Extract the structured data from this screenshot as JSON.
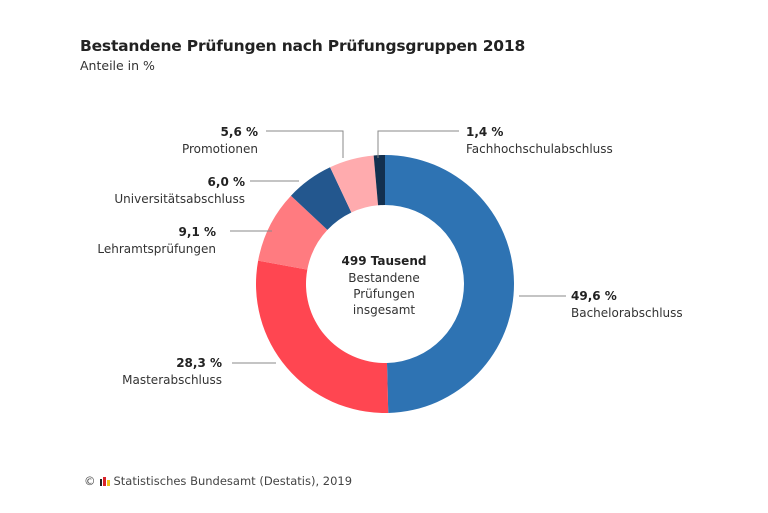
{
  "header": {
    "title": "Bestandene Prüfungen nach Prüfungsgruppen 2018",
    "subtitle": "Anteile in %"
  },
  "chart_data": {
    "type": "pie",
    "variant": "donut",
    "title": "Bestandene Prüfungen nach Prüfungsgruppen 2018",
    "subtitle": "Anteile in %",
    "unit": "%",
    "center_label": {
      "value": "499 Tausend",
      "lines": [
        "Bestandene",
        "Prüfungen",
        "insgesamt"
      ]
    },
    "slices": [
      {
        "name": "Bachelorabschluss",
        "value": 49.6,
        "label": "49,6 %",
        "color": "#2E73B3"
      },
      {
        "name": "Masterabschluss",
        "value": 28.3,
        "label": "28,3 %",
        "color": "#FF4651"
      },
      {
        "name": "Lehramtsprüfungen",
        "value": 9.1,
        "label": "9,1 %",
        "color": "#FF7B80"
      },
      {
        "name": "Universitätsabschluss",
        "value": 6.0,
        "label": "6,0 %",
        "color": "#23578E"
      },
      {
        "name": "Promotionen",
        "value": 5.6,
        "label": "5,6 %",
        "color": "#FFABAE"
      },
      {
        "name": "Fachhochschulabschluss",
        "value": 1.4,
        "label": "1,4 %",
        "color": "#13304F"
      }
    ],
    "start": "top",
    "direction": "clockwise"
  },
  "footer": {
    "copyright_symbol": "©",
    "source": "Statistisches Bundesamt (Destatis), 2019"
  }
}
